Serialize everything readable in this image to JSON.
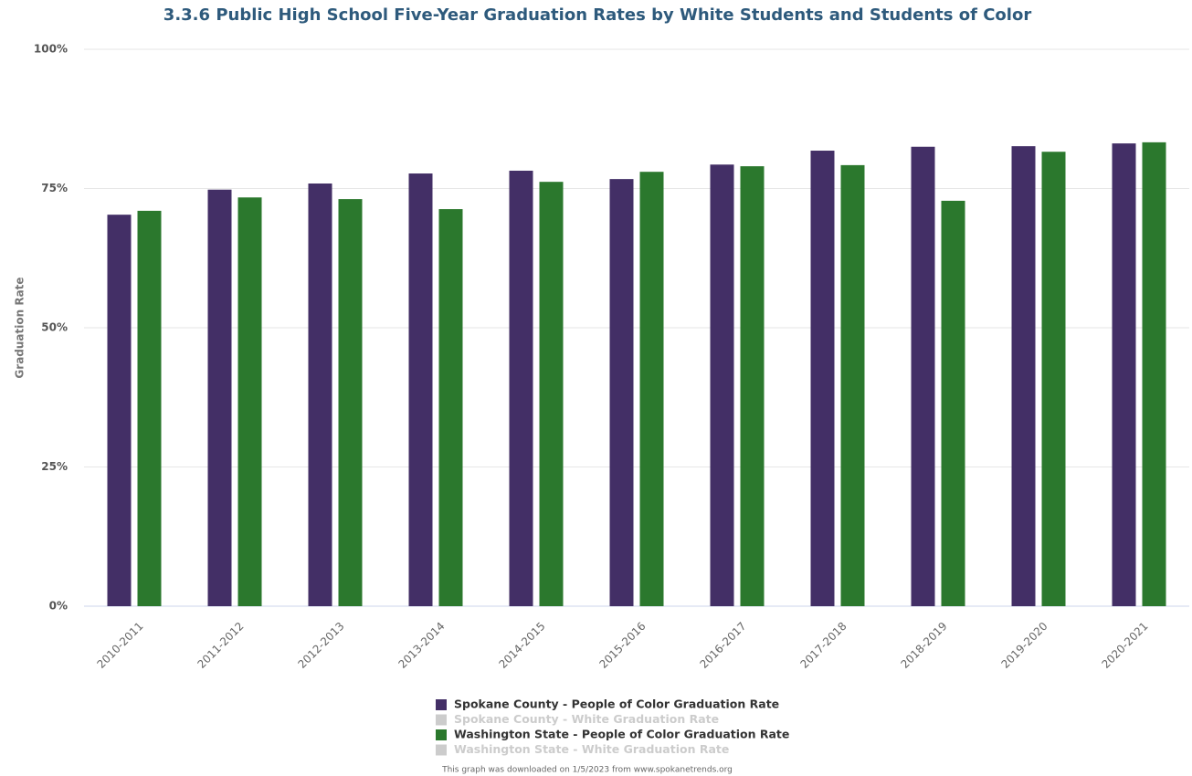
{
  "chart_data": {
    "type": "bar",
    "title": "3.3.6 Public High School Five-Year Graduation Rates by White Students and Students of Color",
    "y_label": "Graduation Rate",
    "categories": [
      "2010-2011",
      "2011-2012",
      "2012-2013",
      "2013-2014",
      "2014-2015",
      "2015-2016",
      "2016-2017",
      "2017-2018",
      "2018-2019",
      "2019-2020",
      "2020-2021"
    ],
    "series": [
      {
        "name": "Spokane County - People of Color Graduation Rate",
        "color": "#432f66",
        "visible": true,
        "values": [
          70.3,
          74.8,
          75.9,
          77.7,
          78.2,
          76.7,
          79.3,
          81.8,
          82.5,
          82.6,
          83.1
        ]
      },
      {
        "name": "Spokane County - White Graduation Rate",
        "visible": false,
        "values": [
          null,
          null,
          null,
          null,
          null,
          null,
          null,
          null,
          null,
          null,
          null
        ]
      },
      {
        "name": "Washington State - People of Color Graduation Rate",
        "color": "#2b782d",
        "visible": true,
        "values": [
          71.0,
          73.4,
          73.1,
          71.3,
          76.2,
          78.0,
          79.0,
          79.2,
          72.8,
          81.6,
          83.3
        ]
      },
      {
        "name": "Washington State - White Graduation Rate",
        "visible": false,
        "values": [
          null,
          null,
          null,
          null,
          null,
          null,
          null,
          null,
          null,
          null,
          null
        ]
      }
    ],
    "ylim": [
      0,
      100
    ],
    "yticks": [
      {
        "value": 0,
        "label": "0%"
      },
      {
        "value": 25,
        "label": "25%"
      },
      {
        "value": 50,
        "label": "50%"
      },
      {
        "value": 75,
        "label": "75%"
      },
      {
        "value": 100,
        "label": "100%"
      }
    ],
    "grid": true,
    "legend": "bottom",
    "credit": "This graph was downloaded on 1/5/2023 from www.spokanetrends.org"
  }
}
